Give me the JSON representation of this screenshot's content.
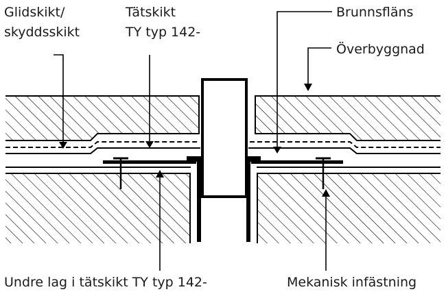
{
  "labels": {
    "glidskikt_line1": "Glidskikt/",
    "glidskikt_line2": "skyddsskikt",
    "tatskikt_line1": "Tätskikt",
    "tatskikt_line2": "TY typ 142-",
    "brunnsflans": "Brunnsfläns",
    "overbyggnad": "Överbyggnad",
    "undre_lag": "Undre lag i tätskikt TY typ 142-",
    "mekanisk": "Mekanisk infästning"
  },
  "colors": {
    "ink": "#000000",
    "text": "#1a1a1a",
    "background": "#ffffff"
  }
}
